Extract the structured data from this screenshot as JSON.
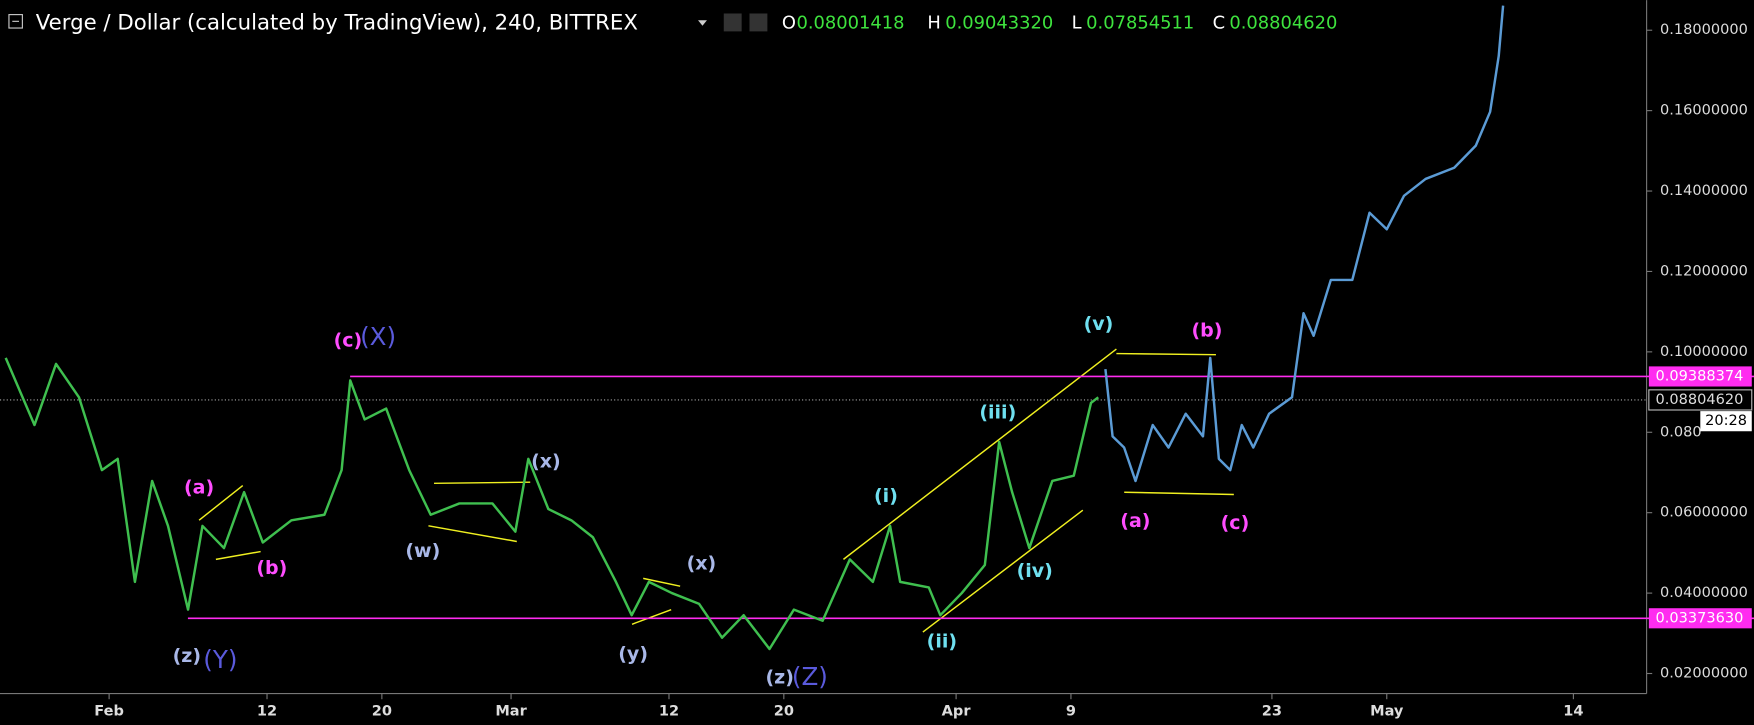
{
  "header": {
    "title": "Verge / Dollar (calculated by TradingView), 240, BITTREX",
    "ohlc": [
      {
        "key": "O",
        "value": "0.08001418"
      },
      {
        "key": "H",
        "value": "0.09043320"
      },
      {
        "key": "L",
        "value": "0.07854511"
      },
      {
        "key": "C",
        "value": "0.08804620"
      }
    ]
  },
  "chart_data": {
    "type": "line",
    "xlim": [
      24.4,
      139.1
    ],
    "ylim": [
      0.015,
      0.1875
    ],
    "xticks": [
      {
        "value": 32,
        "label": "Feb"
      },
      {
        "value": 43,
        "label": "12"
      },
      {
        "value": 51,
        "label": "20"
      },
      {
        "value": 60,
        "label": "Mar"
      },
      {
        "value": 71,
        "label": "12"
      },
      {
        "value": 79,
        "label": "20"
      },
      {
        "value": 91,
        "label": "Apr"
      },
      {
        "value": 99,
        "label": "9"
      },
      {
        "value": 113,
        "label": "23"
      },
      {
        "value": 121,
        "label": "May"
      },
      {
        "value": 134,
        "label": "14"
      }
    ],
    "yticks": [
      {
        "value": 0.02,
        "label": "0.02000000"
      },
      {
        "value": 0.04,
        "label": "0.04000000"
      },
      {
        "value": 0.06,
        "label": "0.06000000"
      },
      {
        "value": 0.08,
        "label": "0.080"
      },
      {
        "value": 0.1,
        "label": "0.10000000"
      },
      {
        "value": 0.12,
        "label": "0.12000000"
      },
      {
        "value": 0.14,
        "label": "0.14000000"
      },
      {
        "value": 0.16,
        "label": "0.16000000"
      },
      {
        "value": 0.18,
        "label": "0.18000000"
      }
    ],
    "levels": [
      {
        "value": 0.09388374,
        "label": "0.09388374",
        "color": "#ff2cf0"
      },
      {
        "value": 0.0337363,
        "label": "0.03373630",
        "color": "#ff2cf0"
      }
    ],
    "last_price": {
      "value": 0.0880462,
      "label": "0.08804620",
      "countdown": "20:28"
    },
    "series": [
      {
        "color": "#3fbf4f",
        "x": [
          24.8,
          26.8,
          28.3,
          29.9,
          31.5,
          32.6,
          33.8,
          35.0,
          36.1,
          37.5,
          38.5,
          40.0,
          41.4,
          42.7,
          44.7,
          47.0,
          48.2,
          48.8,
          49.8,
          51.3,
          52.9,
          54.4,
          56.4,
          58.7,
          60.3,
          61.2,
          62.6,
          64.2,
          65.7,
          67.3,
          68.4,
          69.6,
          71.2,
          73.1,
          74.7,
          76.2,
          78.0,
          79.7,
          81.7,
          83.6,
          85.2,
          86.4,
          87.1,
          89.1,
          89.9,
          91.4,
          93.0,
          94.0,
          94.9,
          96.1,
          97.7,
          99.2,
          100.4,
          100.9
        ],
        "values": [
          0.0985,
          0.0818,
          0.097,
          0.0887,
          0.0706,
          0.0734,
          0.0428,
          0.0679,
          0.0567,
          0.0359,
          0.0567,
          0.0512,
          0.0651,
          0.0526,
          0.0581,
          0.0595,
          0.0706,
          0.0929,
          0.0832,
          0.0859,
          0.0706,
          0.0595,
          0.0623,
          0.0623,
          0.0553,
          0.0734,
          0.0609,
          0.0581,
          0.0539,
          0.0428,
          0.0345,
          0.0428,
          0.04,
          0.0373,
          0.0289,
          0.0345,
          0.0261,
          0.0359,
          0.0331,
          0.0484,
          0.0428,
          0.0567,
          0.0428,
          0.0414,
          0.0345,
          0.04,
          0.047,
          0.0776,
          0.0651,
          0.0512,
          0.0679,
          0.0692,
          0.0873,
          0.0887
        ]
      },
      {
        "color": "#5b9bd5",
        "x": [
          101.4,
          101.9,
          102.7,
          103.5,
          104.7,
          105.8,
          107.0,
          108.2,
          108.7,
          109.3,
          110.1,
          110.9,
          111.7,
          112.8,
          114.4,
          115.2,
          115.9,
          117.1,
          118.6,
          119.8,
          121.0,
          122.2,
          123.7,
          125.7,
          127.2,
          128.2,
          128.8,
          129.1
        ],
        "values": [
          0.0957,
          0.079,
          0.0762,
          0.0679,
          0.0818,
          0.0762,
          0.0846,
          0.079,
          0.0985,
          0.0734,
          0.0706,
          0.0818,
          0.0762,
          0.0846,
          0.0887,
          0.1096,
          0.104,
          0.1179,
          0.1179,
          0.1346,
          0.1305,
          0.1388,
          0.143,
          0.1458,
          0.1513,
          0.1597,
          0.1736,
          0.1861
        ]
      }
    ],
    "annotations": [
      {
        "text": "(c)",
        "color": "#ff4dff"
      },
      {
        "text": "(X)",
        "color": "#5a5adc"
      },
      {
        "text": "(a)",
        "color": "#ff4dff"
      },
      {
        "text": "(b)",
        "color": "#ff4dff"
      },
      {
        "text": "(z)",
        "color": "#a9b8e8"
      },
      {
        "text": "(Y)",
        "color": "#5a5adc"
      },
      {
        "text": "(w)",
        "color": "#a9b8e8"
      },
      {
        "text": "(x)",
        "color": "#a9b8e8"
      },
      {
        "text": "(y)",
        "color": "#a9b8e8"
      },
      {
        "text": "(x)",
        "color": "#a9b8e8"
      },
      {
        "text": "(z)",
        "color": "#a9b8e8"
      },
      {
        "text": "(Z)",
        "color": "#5a5adc"
      },
      {
        "text": "(i)",
        "color": "#6fe0f0"
      },
      {
        "text": "(ii)",
        "color": "#6fe0f0"
      },
      {
        "text": "(iii)",
        "color": "#6fe0f0"
      },
      {
        "text": "(iv)",
        "color": "#6fe0f0"
      },
      {
        "text": "(v)",
        "color": "#6fe0f0"
      },
      {
        "text": "(a)",
        "color": "#ff4dff"
      },
      {
        "text": "(b)",
        "color": "#ff4dff"
      },
      {
        "text": "(c)",
        "color": "#ff4dff"
      }
    ]
  }
}
